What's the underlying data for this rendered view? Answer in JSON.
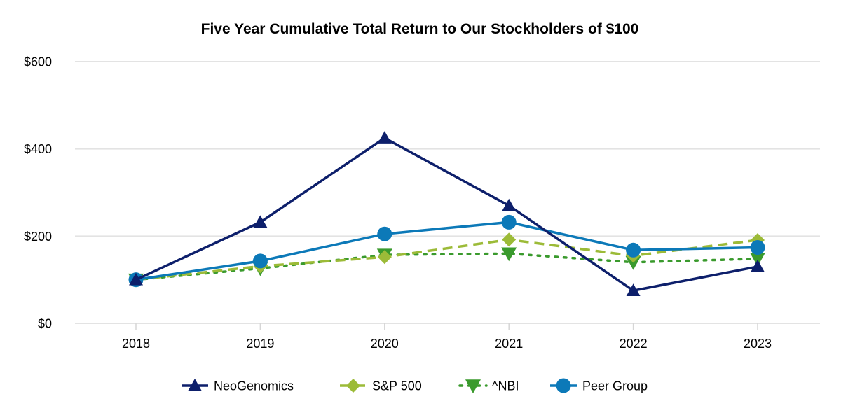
{
  "chart_data": {
    "type": "line",
    "title": "Five Year Cumulative Total Return to Our Stockholders of $100",
    "xlabel": "",
    "ylabel": "",
    "categories": [
      "2018",
      "2019",
      "2020",
      "2021",
      "2022",
      "2023"
    ],
    "ylim": [
      0,
      600
    ],
    "yticks": [
      0,
      200,
      400,
      600
    ],
    "ytick_labels": [
      "$0",
      "$200",
      "$400",
      "$600"
    ],
    "grid": true,
    "legend_position": "bottom",
    "series": [
      {
        "name": "NeoGenomics",
        "color": "#0d1f6b",
        "marker": "triangle-up",
        "linestyle": "solid",
        "values": [
          100,
          232,
          425,
          270,
          75,
          130
        ]
      },
      {
        "name": "S&P 500",
        "color": "#9cbb38",
        "marker": "diamond",
        "linestyle": "dashed",
        "values": [
          100,
          131,
          152,
          192,
          155,
          191
        ]
      },
      {
        "name": "^NBI",
        "color": "#3a9a2d",
        "marker": "triangle-down",
        "linestyle": "dotted",
        "values": [
          100,
          126,
          157,
          160,
          140,
          148
        ]
      },
      {
        "name": "Peer Group",
        "color": "#0c79b8",
        "marker": "circle",
        "linestyle": "solid",
        "values": [
          100,
          143,
          205,
          232,
          168,
          174
        ]
      }
    ]
  }
}
